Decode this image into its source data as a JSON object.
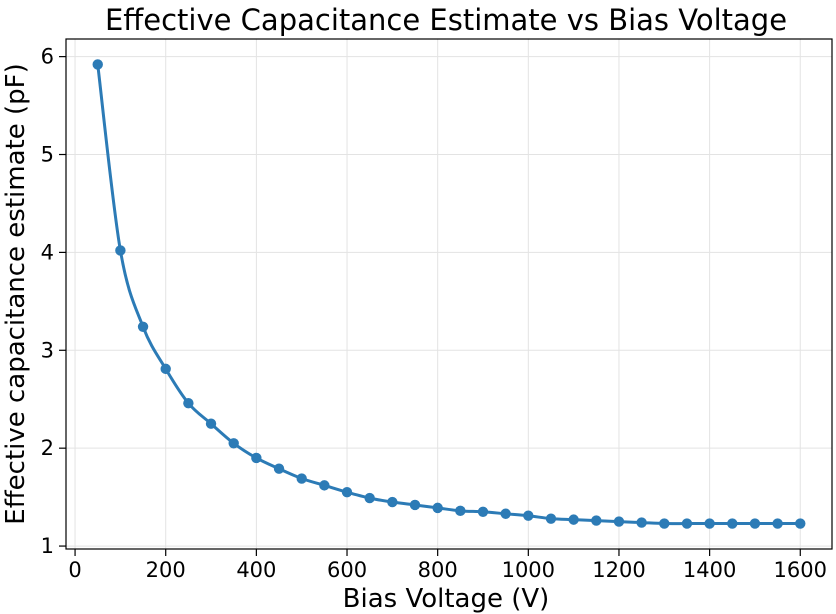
{
  "chart_data": {
    "type": "line",
    "title": "Effective Capacitance Estimate vs Bias Voltage",
    "xlabel": "Bias Voltage (V)",
    "ylabel": "Effective capacitance estimate (pF)",
    "xlim": [
      -20,
      1670
    ],
    "ylim": [
      0.97,
      6.18
    ],
    "xticks": [
      0,
      200,
      400,
      600,
      800,
      1000,
      1200,
      1400,
      1600
    ],
    "yticks": [
      1,
      2,
      3,
      4,
      5,
      6
    ],
    "grid": true,
    "series": [
      {
        "name": "Effective capacitance estimate",
        "color": "#2c7bb6",
        "markers": true,
        "x": [
          50,
          100,
          150,
          200,
          250,
          300,
          350,
          400,
          450,
          500,
          550,
          600,
          650,
          700,
          750,
          800,
          850,
          900,
          950,
          1000,
          1050,
          1100,
          1150,
          1200,
          1250,
          1300,
          1350,
          1400,
          1450,
          1500,
          1550,
          1600
        ],
        "y": [
          5.92,
          4.02,
          3.24,
          2.81,
          2.46,
          2.25,
          2.05,
          1.9,
          1.79,
          1.69,
          1.62,
          1.55,
          1.49,
          1.45,
          1.42,
          1.39,
          1.36,
          1.35,
          1.33,
          1.31,
          1.28,
          1.27,
          1.26,
          1.25,
          1.24,
          1.23,
          1.23,
          1.23,
          1.23,
          1.23,
          1.23,
          1.23
        ]
      }
    ]
  }
}
